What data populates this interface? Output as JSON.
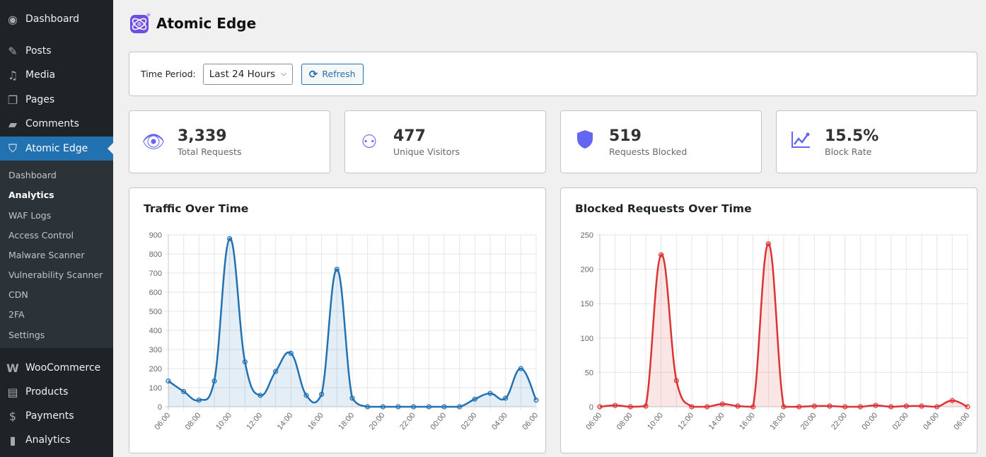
{
  "sidebar": {
    "items": [
      {
        "label": "Dashboard",
        "icon": "dashboard-icon"
      },
      {
        "label": "Posts",
        "icon": "pin-icon"
      },
      {
        "label": "Media",
        "icon": "media-icon"
      },
      {
        "label": "Pages",
        "icon": "pages-icon"
      },
      {
        "label": "Comments",
        "icon": "comment-icon"
      },
      {
        "label": "Atomic Edge",
        "icon": "shield-icon"
      }
    ],
    "submenu": [
      "Dashboard",
      "Analytics",
      "WAF Logs",
      "Access Control",
      "Malware Scanner",
      "Vulnerability Scanner",
      "CDN",
      "2FA",
      "Settings"
    ],
    "bottom": [
      {
        "label": "WooCommerce",
        "icon": "woo-icon"
      },
      {
        "label": "Products",
        "icon": "archive-icon"
      },
      {
        "label": "Payments",
        "icon": "dollar-icon"
      },
      {
        "label": "Analytics",
        "icon": "bar-chart-icon"
      }
    ]
  },
  "header": {
    "title": "Atomic Edge"
  },
  "filter": {
    "label": "Time Period:",
    "selected": "Last 24 Hours",
    "refresh": "Refresh"
  },
  "stats": [
    {
      "value": "3,339",
      "label": "Total Requests",
      "icon": "eye-icon"
    },
    {
      "value": "477",
      "label": "Unique Visitors",
      "icon": "users-icon"
    },
    {
      "value": "519",
      "label": "Requests Blocked",
      "icon": "shield-icon"
    },
    {
      "value": "15.5%",
      "label": "Block Rate",
      "icon": "trend-icon"
    }
  ],
  "colors": {
    "accent": "#6366f1",
    "traffic": "#2271b1",
    "blocked": "#dc3232",
    "sidebar": "#1d2327"
  },
  "chart_data": [
    {
      "type": "line",
      "title": "Traffic Over Time",
      "ylim": [
        0,
        900
      ],
      "yticks": [
        0,
        100,
        200,
        300,
        400,
        500,
        600,
        700,
        800,
        900
      ],
      "x": [
        "06:00",
        "07:00",
        "08:00",
        "09:00",
        "10:00",
        "11:00",
        "12:00",
        "13:00",
        "14:00",
        "15:00",
        "16:00",
        "17:00",
        "18:00",
        "19:00",
        "20:00",
        "21:00",
        "22:00",
        "23:00",
        "00:00",
        "01:00",
        "02:00",
        "03:00",
        "04:00",
        "05:00",
        "06:00"
      ],
      "xticklabels": [
        "06:00",
        "08:00",
        "10:00",
        "12:00",
        "14:00",
        "16:00",
        "18:00",
        "20:00",
        "22:00",
        "00:00",
        "02:00",
        "04:00",
        "06:00"
      ],
      "values": [
        135,
        80,
        35,
        135,
        880,
        235,
        60,
        185,
        280,
        60,
        65,
        720,
        45,
        0,
        0,
        0,
        0,
        0,
        0,
        0,
        40,
        70,
        45,
        200,
        35
      ],
      "grid": true,
      "fill": true
    },
    {
      "type": "line",
      "title": "Blocked Requests Over Time",
      "ylim": [
        0,
        250
      ],
      "yticks": [
        0,
        50,
        100,
        150,
        200,
        250
      ],
      "x": [
        "06:00",
        "07:00",
        "08:00",
        "09:00",
        "10:00",
        "11:00",
        "12:00",
        "13:00",
        "14:00",
        "15:00",
        "16:00",
        "17:00",
        "18:00",
        "19:00",
        "20:00",
        "21:00",
        "22:00",
        "23:00",
        "00:00",
        "01:00",
        "02:00",
        "03:00",
        "04:00",
        "05:00",
        "06:00"
      ],
      "xticklabels": [
        "06:00",
        "08:00",
        "10:00",
        "12:00",
        "14:00",
        "16:00",
        "18:00",
        "20:00",
        "22:00",
        "00:00",
        "02:00",
        "04:00",
        "06:00"
      ],
      "values": [
        0,
        2,
        0,
        1,
        221,
        38,
        0,
        0,
        4,
        1,
        0,
        237,
        0,
        0,
        1,
        1,
        0,
        0,
        2,
        0,
        1,
        1,
        0,
        9,
        0
      ],
      "grid": true,
      "fill": true
    }
  ]
}
